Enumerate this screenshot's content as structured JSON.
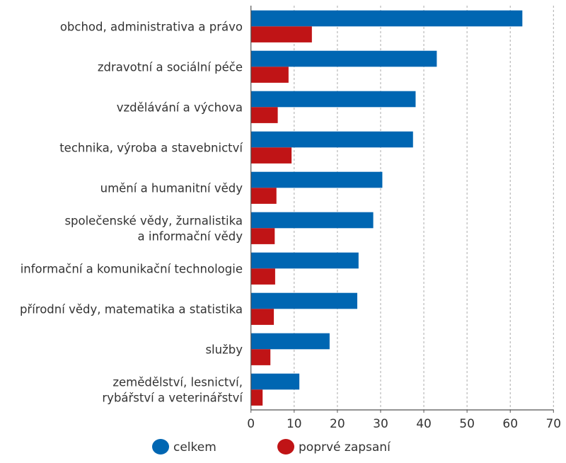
{
  "chart_data": {
    "type": "bar",
    "orientation": "horizontal",
    "title": "",
    "xlabel": "",
    "ylabel": "",
    "xlim": [
      0,
      70
    ],
    "xticks": [
      0,
      10,
      20,
      30,
      40,
      50,
      60,
      70
    ],
    "grid": true,
    "legend_position": "bottom",
    "categories": [
      [
        "obchod, administrativa a právo"
      ],
      [
        "zdravotní a sociální péče"
      ],
      [
        "vzdělávání a výchova"
      ],
      [
        "technika, výroba a stavebnictví"
      ],
      [
        "umění a humanitní vědy"
      ],
      [
        "společenské vědy, žurnalistika",
        "a informační vědy"
      ],
      [
        "informační a komunikační technologie"
      ],
      [
        "přírodní vědy, matematika a statistika"
      ],
      [
        "služby"
      ],
      [
        "zemědělství, lesnictví,",
        "rybářství a veterinářství"
      ]
    ],
    "series": [
      {
        "name": "celkem",
        "color": "#0066b2",
        "values": [
          62.8,
          43.0,
          38.1,
          37.5,
          30.4,
          28.3,
          24.9,
          24.6,
          18.2,
          11.2
        ]
      },
      {
        "name": "poprvé zapsaní",
        "color": "#c01416",
        "values": [
          14.1,
          8.7,
          6.2,
          9.4,
          5.9,
          5.5,
          5.6,
          5.3,
          4.5,
          2.7
        ]
      }
    ]
  }
}
